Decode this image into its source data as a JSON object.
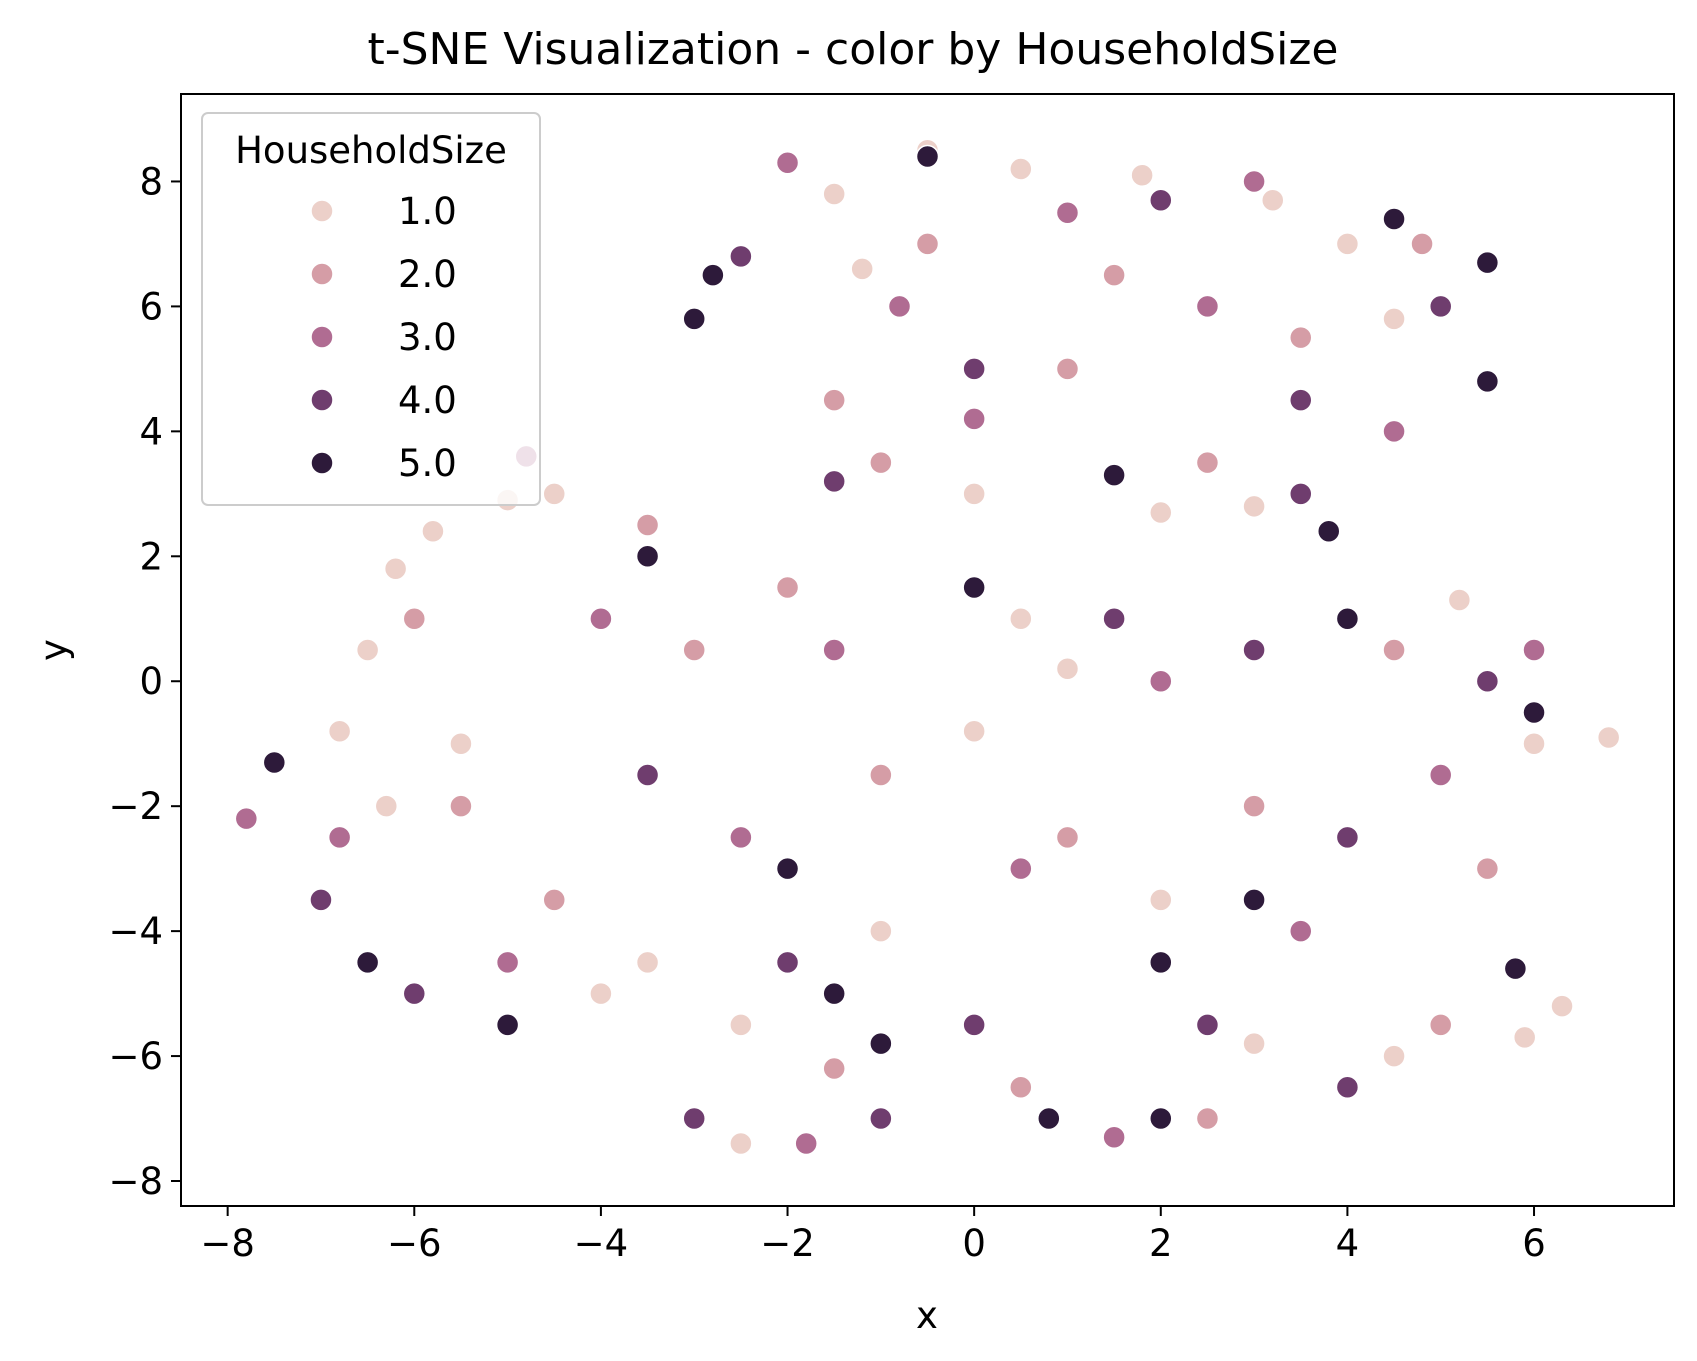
{
  "chart_data": {
    "type": "scatter",
    "title": "t-SNE Visualization - color by HouseholdSize",
    "xlabel": "x",
    "ylabel": "y",
    "xlim": [
      -8.5,
      7.5
    ],
    "ylim": [
      -8.4,
      9.4
    ],
    "xticks": [
      -8,
      -6,
      -4,
      -2,
      0,
      2,
      4,
      6
    ],
    "yticks": [
      -8,
      -6,
      -4,
      -2,
      0,
      2,
      4,
      6,
      8
    ],
    "xtick_labels": [
      "−8",
      "−6",
      "−4",
      "−2",
      "0",
      "2",
      "4",
      "6"
    ],
    "ytick_labels": [
      "−8",
      "−6",
      "−4",
      "−2",
      "0",
      "2",
      "4",
      "6",
      "8"
    ],
    "grid": false,
    "legend": {
      "title": "HouseholdSize",
      "placement": "upper-left",
      "entries": [
        {
          "label": "1.0",
          "color": "#ecd0c9"
        },
        {
          "label": "2.0",
          "color": "#d59da6"
        },
        {
          "label": "3.0",
          "color": "#b06c92"
        },
        {
          "label": "4.0",
          "color": "#6f3d6e"
        },
        {
          "label": "5.0",
          "color": "#2d1a3a"
        }
      ]
    },
    "series": [
      {
        "name": "1.0",
        "color": "#ecd0c9",
        "values": [
          [
            -6.2,
            1.8
          ],
          [
            -5.8,
            2.4
          ],
          [
            -5.0,
            2.9
          ],
          [
            -4.5,
            3.0
          ],
          [
            -6.5,
            0.5
          ],
          [
            -6.8,
            -0.8
          ],
          [
            -6.3,
            -2.0
          ],
          [
            -5.5,
            -1.0
          ],
          [
            -4.0,
            -5.0
          ],
          [
            -3.5,
            -4.5
          ],
          [
            -2.5,
            -5.5
          ],
          [
            -1.0,
            -4.0
          ],
          [
            0.0,
            -0.8
          ],
          [
            0.5,
            1.0
          ],
          [
            1.0,
            0.2
          ],
          [
            2.0,
            -3.5
          ],
          [
            3.0,
            -5.8
          ],
          [
            4.5,
            -6.0
          ],
          [
            5.2,
            1.3
          ],
          [
            6.0,
            -1.0
          ],
          [
            6.3,
            -5.2
          ],
          [
            5.9,
            -5.7
          ],
          [
            6.8,
            -0.9
          ],
          [
            -1.5,
            7.8
          ],
          [
            -0.5,
            8.5
          ],
          [
            0.5,
            8.2
          ],
          [
            1.8,
            8.1
          ],
          [
            3.2,
            7.7
          ],
          [
            4.0,
            7.0
          ],
          [
            0.0,
            3.0
          ],
          [
            2.0,
            2.7
          ],
          [
            3.0,
            2.8
          ],
          [
            -1.2,
            6.6
          ],
          [
            4.5,
            5.8
          ],
          [
            -2.5,
            -7.4
          ]
        ]
      },
      {
        "name": "2.0",
        "color": "#d59da6",
        "values": [
          [
            -6.0,
            1.0
          ],
          [
            -5.5,
            -2.0
          ],
          [
            -3.0,
            0.5
          ],
          [
            -2.0,
            1.5
          ],
          [
            -1.0,
            -1.5
          ],
          [
            1.0,
            -2.5
          ],
          [
            3.0,
            -2.0
          ],
          [
            4.5,
            0.5
          ],
          [
            5.5,
            -3.0
          ],
          [
            -0.5,
            7.0
          ],
          [
            1.5,
            6.5
          ],
          [
            3.5,
            5.5
          ],
          [
            -1.5,
            4.5
          ],
          [
            2.5,
            3.5
          ],
          [
            -4.5,
            -3.5
          ],
          [
            0.5,
            -6.5
          ],
          [
            2.5,
            -7.0
          ],
          [
            -1.5,
            -6.2
          ],
          [
            5.0,
            -5.5
          ],
          [
            -3.5,
            2.5
          ],
          [
            -1.0,
            3.5
          ],
          [
            1.0,
            5.0
          ],
          [
            4.8,
            7.0
          ]
        ]
      },
      {
        "name": "3.0",
        "color": "#b06c92",
        "values": [
          [
            -6.8,
            -2.5
          ],
          [
            -5.0,
            -4.5
          ],
          [
            -4.0,
            1.0
          ],
          [
            -2.5,
            -2.5
          ],
          [
            -1.5,
            0.5
          ],
          [
            0.5,
            -3.0
          ],
          [
            2.0,
            0.0
          ],
          [
            3.5,
            -4.0
          ],
          [
            5.0,
            -1.5
          ],
          [
            6.0,
            0.5
          ],
          [
            -2.0,
            8.3
          ],
          [
            -0.8,
            6.0
          ],
          [
            1.0,
            7.5
          ],
          [
            2.5,
            6.0
          ],
          [
            4.5,
            4.0
          ],
          [
            -1.8,
            -7.4
          ],
          [
            -7.8,
            -2.2
          ],
          [
            -4.8,
            3.6
          ],
          [
            0.0,
            4.2
          ],
          [
            3.0,
            8.0
          ],
          [
            1.5,
            -7.3
          ]
        ]
      },
      {
        "name": "4.0",
        "color": "#6f3d6e",
        "values": [
          [
            -7.0,
            -3.5
          ],
          [
            -6.0,
            -5.0
          ],
          [
            -3.5,
            -1.5
          ],
          [
            -2.0,
            -4.5
          ],
          [
            0.0,
            -5.5
          ],
          [
            1.5,
            1.0
          ],
          [
            3.0,
            0.5
          ],
          [
            4.0,
            -2.5
          ],
          [
            5.5,
            0.0
          ],
          [
            -2.5,
            6.8
          ],
          [
            0.0,
            5.0
          ],
          [
            2.0,
            7.7
          ],
          [
            3.5,
            4.5
          ],
          [
            5.0,
            6.0
          ],
          [
            -1.0,
            -7.0
          ],
          [
            2.5,
            -5.5
          ],
          [
            -3.0,
            -7.0
          ],
          [
            4.0,
            -6.5
          ],
          [
            -1.5,
            3.2
          ],
          [
            3.5,
            3.0
          ]
        ]
      },
      {
        "name": "5.0",
        "color": "#2d1a3a",
        "values": [
          [
            -7.5,
            -1.3
          ],
          [
            -6.5,
            -4.5
          ],
          [
            -5.0,
            -5.5
          ],
          [
            -3.5,
            2.0
          ],
          [
            -2.0,
            -3.0
          ],
          [
            0.0,
            1.5
          ],
          [
            2.0,
            -4.5
          ],
          [
            3.0,
            -3.5
          ],
          [
            4.0,
            1.0
          ],
          [
            6.0,
            -0.5
          ],
          [
            -2.8,
            6.5
          ],
          [
            -3.0,
            5.8
          ],
          [
            5.5,
            6.7
          ],
          [
            5.5,
            4.8
          ],
          [
            4.5,
            7.4
          ],
          [
            1.5,
            3.3
          ],
          [
            -0.5,
            8.4
          ],
          [
            2.0,
            -7.0
          ],
          [
            -1.5,
            -5.0
          ],
          [
            5.8,
            -4.6
          ],
          [
            3.8,
            2.4
          ],
          [
            0.8,
            -7.0
          ],
          [
            -1.0,
            -5.8
          ]
        ]
      }
    ]
  }
}
